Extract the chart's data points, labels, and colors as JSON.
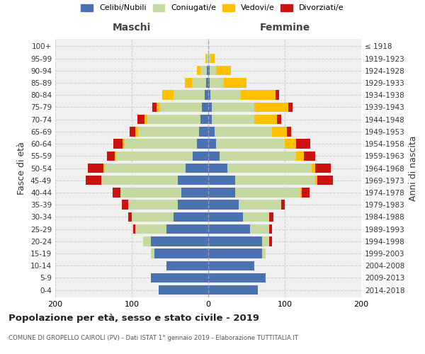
{
  "age_groups": [
    "0-4",
    "5-9",
    "10-14",
    "15-19",
    "20-24",
    "25-29",
    "30-34",
    "35-39",
    "40-44",
    "45-49",
    "50-54",
    "55-59",
    "60-64",
    "65-69",
    "70-74",
    "75-79",
    "80-84",
    "85-89",
    "90-94",
    "95-99",
    "100+"
  ],
  "birth_years": [
    "2014-2018",
    "2009-2013",
    "2004-2008",
    "1999-2003",
    "1994-1998",
    "1989-1993",
    "1984-1988",
    "1979-1983",
    "1974-1978",
    "1969-1973",
    "1964-1968",
    "1959-1963",
    "1954-1958",
    "1949-1953",
    "1944-1948",
    "1939-1943",
    "1934-1938",
    "1929-1933",
    "1924-1928",
    "1919-1923",
    "≤ 1918"
  ],
  "males": {
    "celibi": [
      65,
      75,
      55,
      70,
      75,
      55,
      45,
      40,
      35,
      40,
      30,
      20,
      15,
      12,
      10,
      8,
      5,
      3,
      2,
      0,
      0
    ],
    "coniugati": [
      0,
      0,
      0,
      5,
      10,
      40,
      55,
      65,
      80,
      100,
      105,
      100,
      95,
      80,
      70,
      55,
      40,
      18,
      8,
      2,
      0
    ],
    "vedovi": [
      0,
      0,
      0,
      0,
      0,
      0,
      0,
      0,
      0,
      0,
      2,
      2,
      2,
      3,
      3,
      5,
      15,
      10,
      5,
      2,
      0
    ],
    "divorziati": [
      0,
      0,
      0,
      0,
      0,
      3,
      5,
      8,
      10,
      20,
      20,
      10,
      12,
      8,
      10,
      5,
      0,
      0,
      0,
      0,
      0
    ]
  },
  "females": {
    "nubili": [
      65,
      75,
      60,
      70,
      70,
      55,
      45,
      40,
      35,
      35,
      25,
      15,
      10,
      8,
      5,
      5,
      3,
      2,
      2,
      0,
      0
    ],
    "coniugate": [
      0,
      0,
      0,
      5,
      10,
      25,
      35,
      55,
      85,
      105,
      110,
      100,
      90,
      75,
      55,
      55,
      40,
      18,
      8,
      3,
      0
    ],
    "vedove": [
      0,
      0,
      0,
      0,
      0,
      0,
      0,
      0,
      2,
      3,
      5,
      10,
      15,
      20,
      30,
      45,
      45,
      30,
      20,
      5,
      0
    ],
    "divorziate": [
      0,
      0,
      0,
      0,
      3,
      3,
      5,
      5,
      10,
      20,
      20,
      15,
      18,
      5,
      5,
      5,
      5,
      0,
      0,
      0,
      0
    ]
  },
  "colors": {
    "celibi": "#4a72b0",
    "coniugati": "#c5d9a0",
    "vedovi": "#ffc000",
    "divorziati": "#cc1111"
  },
  "xlim": 200,
  "title": "Popolazione per età, sesso e stato civile - 2019",
  "subtitle": "COMUNE DI GROPELLO CAIROLI (PV) - Dati ISTAT 1° gennaio 2019 - Elaborazione TUTTITALIA.IT",
  "ylabel_left": "Fasce di età",
  "ylabel_right": "Anni di nascita",
  "xlabel_left": "Maschi",
  "xlabel_right": "Femmine",
  "legend_labels": [
    "Celibi/Nubili",
    "Coniugati/e",
    "Vedovi/e",
    "Divorziati/e"
  ],
  "bg_color": "#f0f0f0",
  "grid_color": "#cccccc",
  "header_color_maschi": "#444444",
  "header_color_femmine": "#444444"
}
